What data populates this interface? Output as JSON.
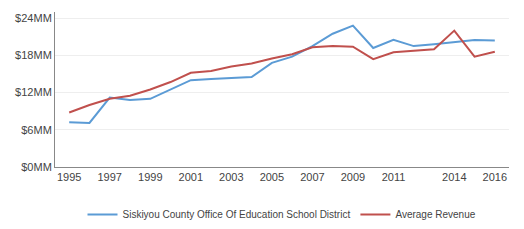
{
  "chart_data": {
    "type": "line",
    "x": [
      1995,
      1996,
      1997,
      1998,
      1999,
      2000,
      2001,
      2002,
      2003,
      2004,
      2005,
      2006,
      2007,
      2008,
      2009,
      2010,
      2011,
      2012,
      2013,
      2014,
      2015,
      2016
    ],
    "series": [
      {
        "name": "Siskiyou County Office Of Education School District",
        "color": "#5b9bd5",
        "values": [
          7200000,
          7100000,
          11200000,
          10800000,
          11000000,
          12500000,
          14000000,
          14200000,
          14400000,
          14500000,
          16800000,
          17800000,
          19500000,
          21500000,
          22800000,
          19200000,
          20500000,
          19500000,
          19800000,
          20200000,
          20500000,
          20400000
        ]
      },
      {
        "name": "Average Revenue",
        "color": "#c0504d",
        "values": [
          8800000,
          10000000,
          11000000,
          11500000,
          12500000,
          13700000,
          15200000,
          15500000,
          16200000,
          16700000,
          17500000,
          18200000,
          19300000,
          19500000,
          19400000,
          17400000,
          18500000,
          18800000,
          19000000,
          22000000,
          17800000,
          18600000
        ]
      }
    ],
    "xlim": [
      1994.3,
      2016.7
    ],
    "xticks": [
      1995,
      1997,
      1999,
      2001,
      2003,
      2005,
      2007,
      2009,
      2011,
      2014,
      2016
    ],
    "ylim": [
      0,
      25000000
    ],
    "yticks": [
      {
        "value": 0,
        "label": "$0MM"
      },
      {
        "value": 6000000,
        "label": "$6MM"
      },
      {
        "value": 12000000,
        "label": "$12MM"
      },
      {
        "value": 18000000,
        "label": "$18MM"
      },
      {
        "value": 24000000,
        "label": "$24MM"
      }
    ],
    "grid": "y",
    "legend": "bottom"
  }
}
